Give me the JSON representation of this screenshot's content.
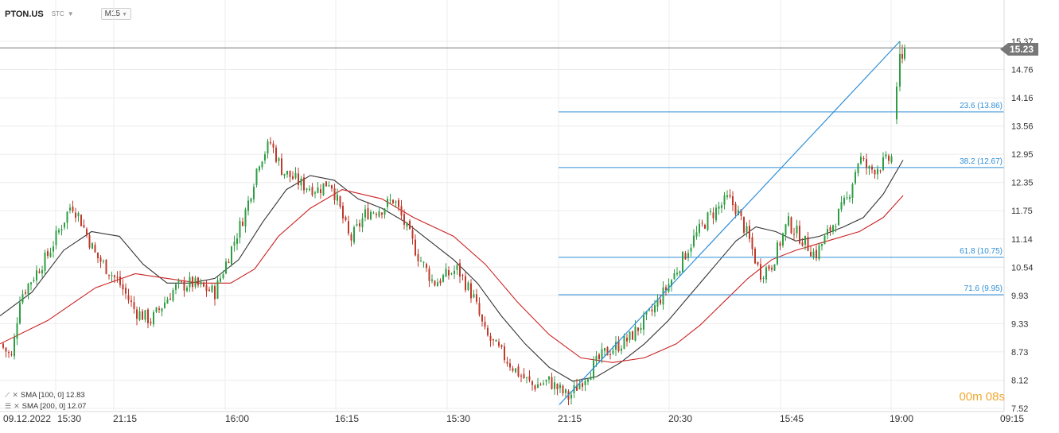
{
  "header": {
    "symbol": "PTON.US",
    "type": "STC",
    "timeframe": "M15"
  },
  "current_price": "15.23",
  "timer": "00m 08s",
  "legend": [
    {
      "label": "SMA [100, 0]  12.83",
      "color": "#333333"
    },
    {
      "label": "SMA [200, 0]  12.07",
      "color": "#cc2222"
    }
  ],
  "colors": {
    "up": "#2e9e44",
    "down": "#c0392b",
    "sma100": "#333333",
    "sma200": "#cc2222",
    "fib": "#2f8fd8",
    "trend": "#2f8fd8",
    "price_line": "#777777",
    "timer": "#f0a830"
  },
  "chart_data": {
    "type": "candlestick",
    "grid": true,
    "ylim": [
      7.52,
      15.37
    ],
    "y_ticks": [
      "15.37",
      "14.76",
      "14.16",
      "13.56",
      "12.95",
      "12.35",
      "11.75",
      "11.14",
      "10.54",
      "9.93",
      "9.33",
      "8.73",
      "8.12",
      "7.52"
    ],
    "x_ticks": [
      "09.12.2022",
      "15:30",
      "21:15",
      "16:00",
      "16:15",
      "15:30",
      "21:15",
      "20:30",
      "15:45",
      "19:00",
      "09:15"
    ],
    "close_path": [
      [
        0,
        8.9
      ],
      [
        15,
        8.6
      ],
      [
        25,
        9.9
      ],
      [
        60,
        10.8
      ],
      [
        90,
        11.9
      ],
      [
        100,
        11.6
      ],
      [
        120,
        10.8
      ],
      [
        150,
        10.2
      ],
      [
        170,
        9.6
      ],
      [
        190,
        9.4
      ],
      [
        220,
        10.1
      ],
      [
        240,
        10.2
      ],
      [
        270,
        10.0
      ],
      [
        290,
        10.9
      ],
      [
        310,
        11.8
      ],
      [
        325,
        12.8
      ],
      [
        340,
        13.2
      ],
      [
        355,
        12.6
      ],
      [
        380,
        12.3
      ],
      [
        400,
        12.2
      ],
      [
        415,
        12.4
      ],
      [
        425,
        11.9
      ],
      [
        440,
        11.1
      ],
      [
        460,
        11.7
      ],
      [
        480,
        11.8
      ],
      [
        495,
        12.0
      ],
      [
        510,
        11.4
      ],
      [
        525,
        10.8
      ],
      [
        545,
        10.2
      ],
      [
        575,
        10.5
      ],
      [
        595,
        9.9
      ],
      [
        610,
        9.1
      ],
      [
        630,
        8.7
      ],
      [
        650,
        8.3
      ],
      [
        670,
        8.0
      ],
      [
        690,
        8.1
      ],
      [
        715,
        7.75
      ],
      [
        730,
        8.1
      ],
      [
        760,
        8.7
      ],
      [
        790,
        9.0
      ],
      [
        820,
        9.6
      ],
      [
        845,
        10.3
      ],
      [
        870,
        11.1
      ],
      [
        890,
        11.6
      ],
      [
        915,
        12.0
      ],
      [
        925,
        11.8
      ],
      [
        940,
        11.2
      ],
      [
        955,
        10.4
      ],
      [
        970,
        10.6
      ],
      [
        990,
        11.5
      ],
      [
        1005,
        11.2
      ],
      [
        1025,
        10.8
      ],
      [
        1045,
        11.4
      ],
      [
        1065,
        12.0
      ],
      [
        1080,
        12.9
      ],
      [
        1092,
        12.6
      ],
      [
        1105,
        12.7
      ],
      [
        1122,
        12.9
      ],
      [
        1127,
        14.1
      ],
      [
        1131,
        14.9
      ],
      [
        1136,
        15.23
      ]
    ],
    "series": [
      {
        "name": "SMA [100, 0]",
        "last": 12.83,
        "points": [
          [
            0,
            9.5
          ],
          [
            40,
            10.0
          ],
          [
            80,
            10.9
          ],
          [
            115,
            11.3
          ],
          [
            150,
            11.2
          ],
          [
            180,
            10.6
          ],
          [
            210,
            10.2
          ],
          [
            240,
            10.2
          ],
          [
            270,
            10.3
          ],
          [
            300,
            10.7
          ],
          [
            330,
            11.5
          ],
          [
            360,
            12.2
          ],
          [
            390,
            12.5
          ],
          [
            420,
            12.4
          ],
          [
            450,
            12.0
          ],
          [
            480,
            11.8
          ],
          [
            510,
            11.5
          ],
          [
            540,
            11.1
          ],
          [
            570,
            10.7
          ],
          [
            600,
            10.2
          ],
          [
            630,
            9.5
          ],
          [
            660,
            8.9
          ],
          [
            690,
            8.4
          ],
          [
            720,
            8.1
          ],
          [
            750,
            8.2
          ],
          [
            780,
            8.5
          ],
          [
            810,
            8.9
          ],
          [
            840,
            9.4
          ],
          [
            870,
            10.0
          ],
          [
            900,
            10.6
          ],
          [
            925,
            11.1
          ],
          [
            950,
            11.4
          ],
          [
            975,
            11.3
          ],
          [
            1000,
            11.1
          ],
          [
            1030,
            11.2
          ],
          [
            1060,
            11.4
          ],
          [
            1085,
            11.6
          ],
          [
            1110,
            12.1
          ],
          [
            1135,
            12.83
          ]
        ]
      },
      {
        "name": "SMA [200, 0]",
        "last": 12.07,
        "points": [
          [
            0,
            8.9
          ],
          [
            60,
            9.4
          ],
          [
            120,
            10.1
          ],
          [
            170,
            10.4
          ],
          [
            210,
            10.3
          ],
          [
            250,
            10.2
          ],
          [
            290,
            10.2
          ],
          [
            320,
            10.5
          ],
          [
            350,
            11.2
          ],
          [
            390,
            11.8
          ],
          [
            430,
            12.2
          ],
          [
            480,
            12.0
          ],
          [
            520,
            11.6
          ],
          [
            570,
            11.2
          ],
          [
            610,
            10.6
          ],
          [
            650,
            9.8
          ],
          [
            690,
            9.1
          ],
          [
            730,
            8.6
          ],
          [
            770,
            8.5
          ],
          [
            810,
            8.6
          ],
          [
            850,
            8.9
          ],
          [
            880,
            9.3
          ],
          [
            910,
            9.8
          ],
          [
            940,
            10.3
          ],
          [
            970,
            10.7
          ],
          [
            1000,
            10.9
          ],
          [
            1040,
            11.1
          ],
          [
            1080,
            11.3
          ],
          [
            1110,
            11.6
          ],
          [
            1135,
            12.07
          ]
        ]
      }
    ],
    "fibonacci": [
      {
        "label": "23.6 (13.86)",
        "level": 13.86
      },
      {
        "label": "38.2 (12.67)",
        "level": 12.67
      },
      {
        "label": "61.8 (10.75)",
        "level": 10.75
      },
      {
        "label": "71.6 (9.95)",
        "level": 9.95
      }
    ],
    "trendline": [
      [
        703,
        7.6
      ],
      [
        1131,
        15.37
      ]
    ],
    "last_price": 15.23
  }
}
